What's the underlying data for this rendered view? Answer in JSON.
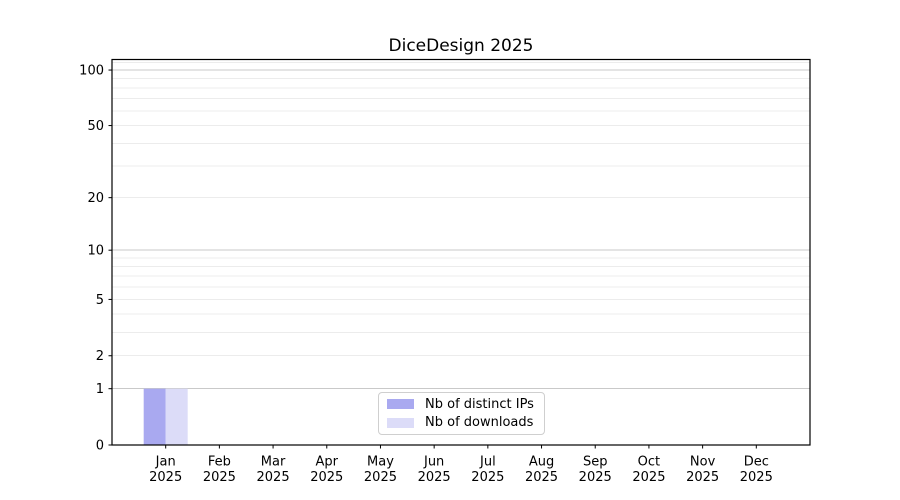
{
  "title": "DiceDesign 2025",
  "chart_data": {
    "type": "bar",
    "title": "DiceDesign 2025",
    "months": [
      "Jan",
      "Feb",
      "Mar",
      "Apr",
      "May",
      "Jun",
      "Jul",
      "Aug",
      "Sep",
      "Oct",
      "Nov",
      "Dec"
    ],
    "year": "2025",
    "series": [
      {
        "name": "Nb of distinct IPs",
        "color": "#a9a9f0",
        "values": [
          1,
          0,
          0,
          0,
          0,
          0,
          0,
          0,
          0,
          0,
          0,
          0
        ]
      },
      {
        "name": "Nb of downloads",
        "color": "#dcdcf8",
        "values": [
          1,
          0,
          0,
          0,
          0,
          0,
          0,
          0,
          0,
          0,
          0,
          0
        ]
      }
    ],
    "y_scale": "log1p",
    "ylim": [
      0,
      114
    ],
    "y_labeled_ticks": [
      0,
      1,
      2,
      5,
      10,
      20,
      50,
      100
    ],
    "y_major_gridlines": [
      1,
      10,
      100
    ],
    "y_minor_gridlines": [
      2,
      3,
      4,
      5,
      6,
      7,
      8,
      9,
      20,
      30,
      40,
      50,
      60,
      70,
      80,
      90,
      110
    ],
    "grid": "horizontal",
    "legend_position": "lower-center-inside"
  },
  "colors": {
    "background": "#ffffff",
    "spine": "#000000",
    "major_grid": "#c9c9c9",
    "minor_grid": "#ececec",
    "text": "#000000",
    "legend_border": "#cfcfcf"
  }
}
